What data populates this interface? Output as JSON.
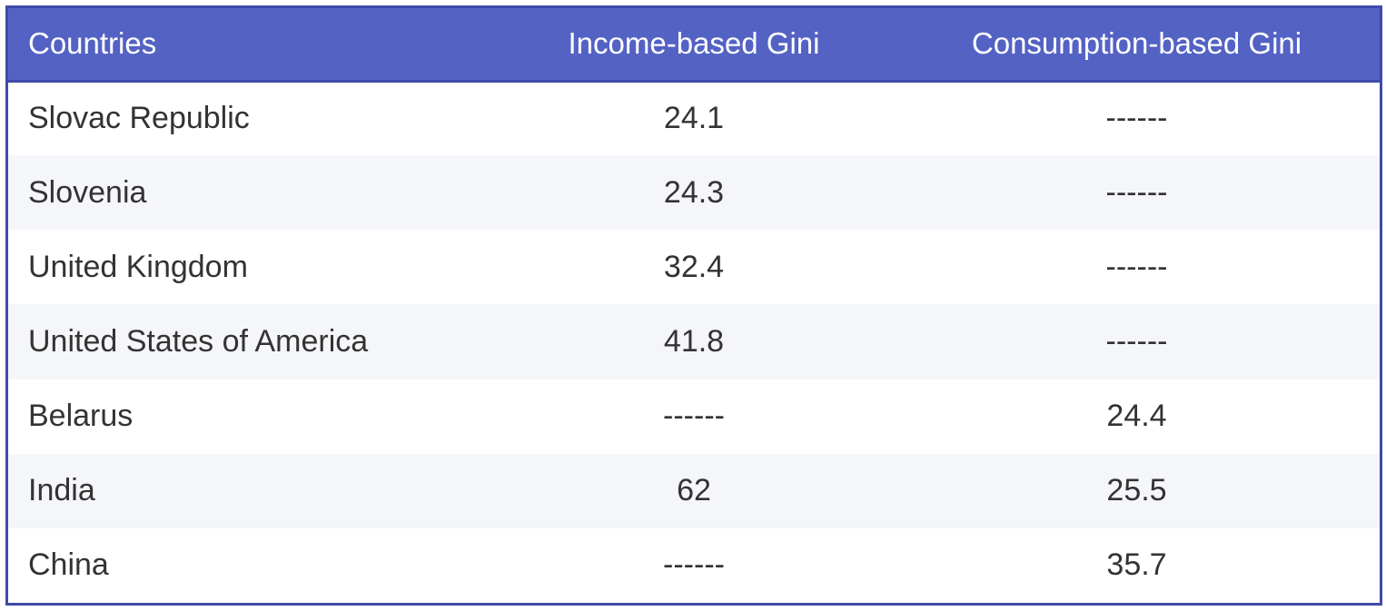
{
  "table": {
    "headers": [
      "Countries",
      "Income-based Gini",
      "Consumption-based Gini"
    ],
    "rows": [
      [
        "Slovac Republic",
        "24.1",
        "------"
      ],
      [
        "Slovenia",
        "24.3",
        "------"
      ],
      [
        "United Kingdom",
        "32.4",
        "------"
      ],
      [
        "United States of America",
        "41.8",
        "------"
      ],
      [
        "Belarus",
        "------",
        "24.4"
      ],
      [
        "India",
        "62",
        "25.5"
      ],
      [
        "China",
        "------",
        "35.7"
      ]
    ]
  },
  "colors": {
    "header_background": "#5462c4",
    "border": "#3f4aa8",
    "stripe": "#f5f6f9",
    "text": "#333333"
  }
}
